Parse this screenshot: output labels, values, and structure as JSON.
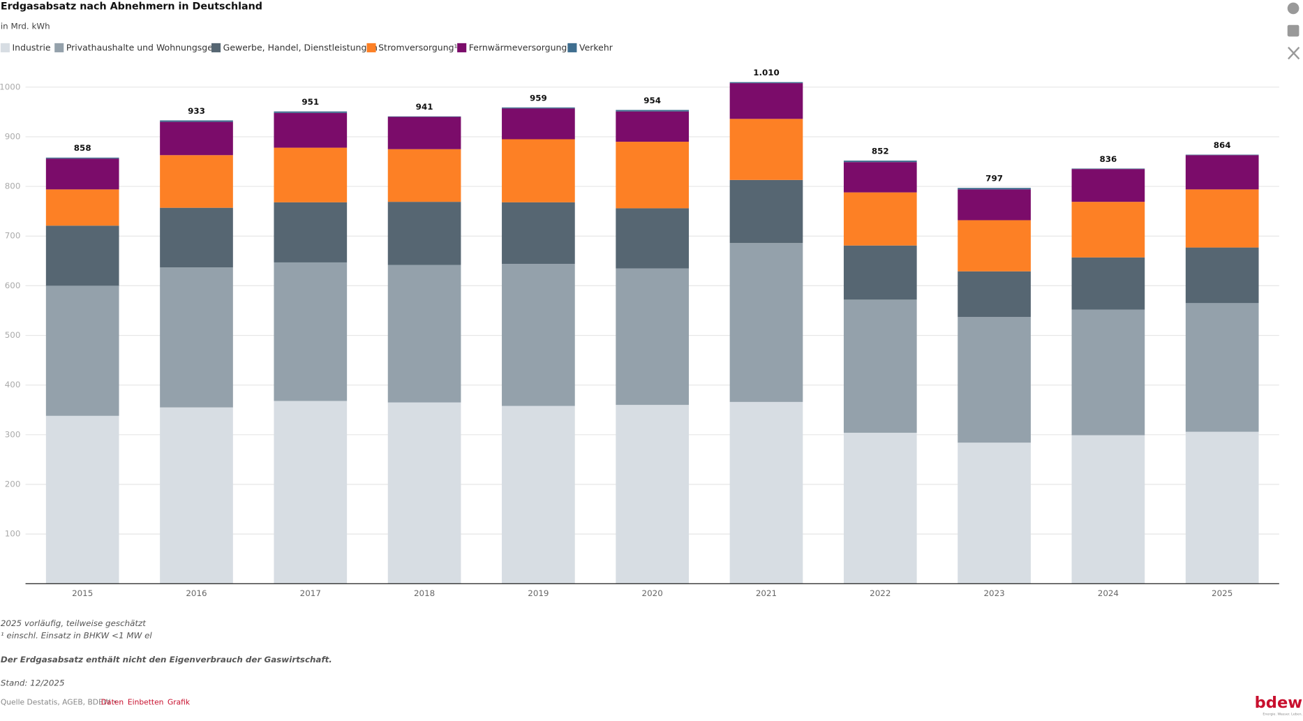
{
  "chart_data": {
    "type": "stacked_bar",
    "title": "Erdgasabsatz nach Abnehmern in Deutschland",
    "subtitle": "in Mrd. kWh",
    "categories": [
      "2015",
      "2016",
      "2017",
      "2018",
      "2019",
      "2020",
      "2021",
      "2022",
      "2023",
      "2024",
      "2025"
    ],
    "series": [
      {
        "name": "Industrie",
        "color": "#d7dde3",
        "values": [
          338,
          355,
          368,
          365,
          358,
          360,
          366,
          304,
          284,
          299,
          306
        ]
      },
      {
        "name": "Privathaushalte und Wohnungsges.",
        "color": "#94a1ab",
        "values": [
          262,
          282,
          279,
          277,
          286,
          275,
          320,
          268,
          253,
          253,
          259
        ]
      },
      {
        "name": "Gewerbe, Handel, Dienstleistungen",
        "color": "#566672",
        "values": [
          121,
          120,
          121,
          127,
          124,
          121,
          127,
          109,
          92,
          105,
          112
        ]
      },
      {
        "name": "Stromversorgung¹",
        "color": "#fd8025",
        "values": [
          73,
          106,
          110,
          106,
          127,
          134,
          123,
          107,
          103,
          112,
          117
        ]
      },
      {
        "name": "Fernwärmeversorgung¹",
        "color": "#7b0c6a",
        "values": [
          62,
          67,
          70,
          65,
          62,
          61,
          72,
          61,
          62,
          66,
          69
        ]
      },
      {
        "name": "Verkehr",
        "color": "#3f6e8f",
        "values": [
          2,
          3,
          3,
          1,
          2,
          3,
          2,
          3,
          3,
          1,
          1
        ]
      }
    ],
    "totals": {
      "values": [
        858,
        933,
        951,
        941,
        959,
        954,
        1010,
        852,
        797,
        836,
        864
      ],
      "value_labels": [
        "858",
        "933",
        "951",
        "941",
        "959",
        "954",
        "1.010",
        "852",
        "797",
        "836",
        "864"
      ]
    },
    "ylim": [
      0,
      1050
    ],
    "yticks": [
      100,
      200,
      300,
      400,
      500,
      600,
      700,
      800,
      900,
      1000
    ],
    "grid": true,
    "notes": [
      "2025 vorläufig, teilweise geschätzt",
      "¹ einschl. Einsatz in BHKW <1 MW el"
    ],
    "remark": "Der Erdgasabsatz enthält nicht den Eigenverbrauch der Gaswirtschaft.",
    "stand": "Stand: 12/2025",
    "source": "Quelle Destatis, AGEB, BDEW •",
    "links": [
      "Daten",
      "Einbetten",
      "Grafik"
    ],
    "logo": "bdew",
    "logo_tagline": "Energie. Wasser. Leben."
  }
}
